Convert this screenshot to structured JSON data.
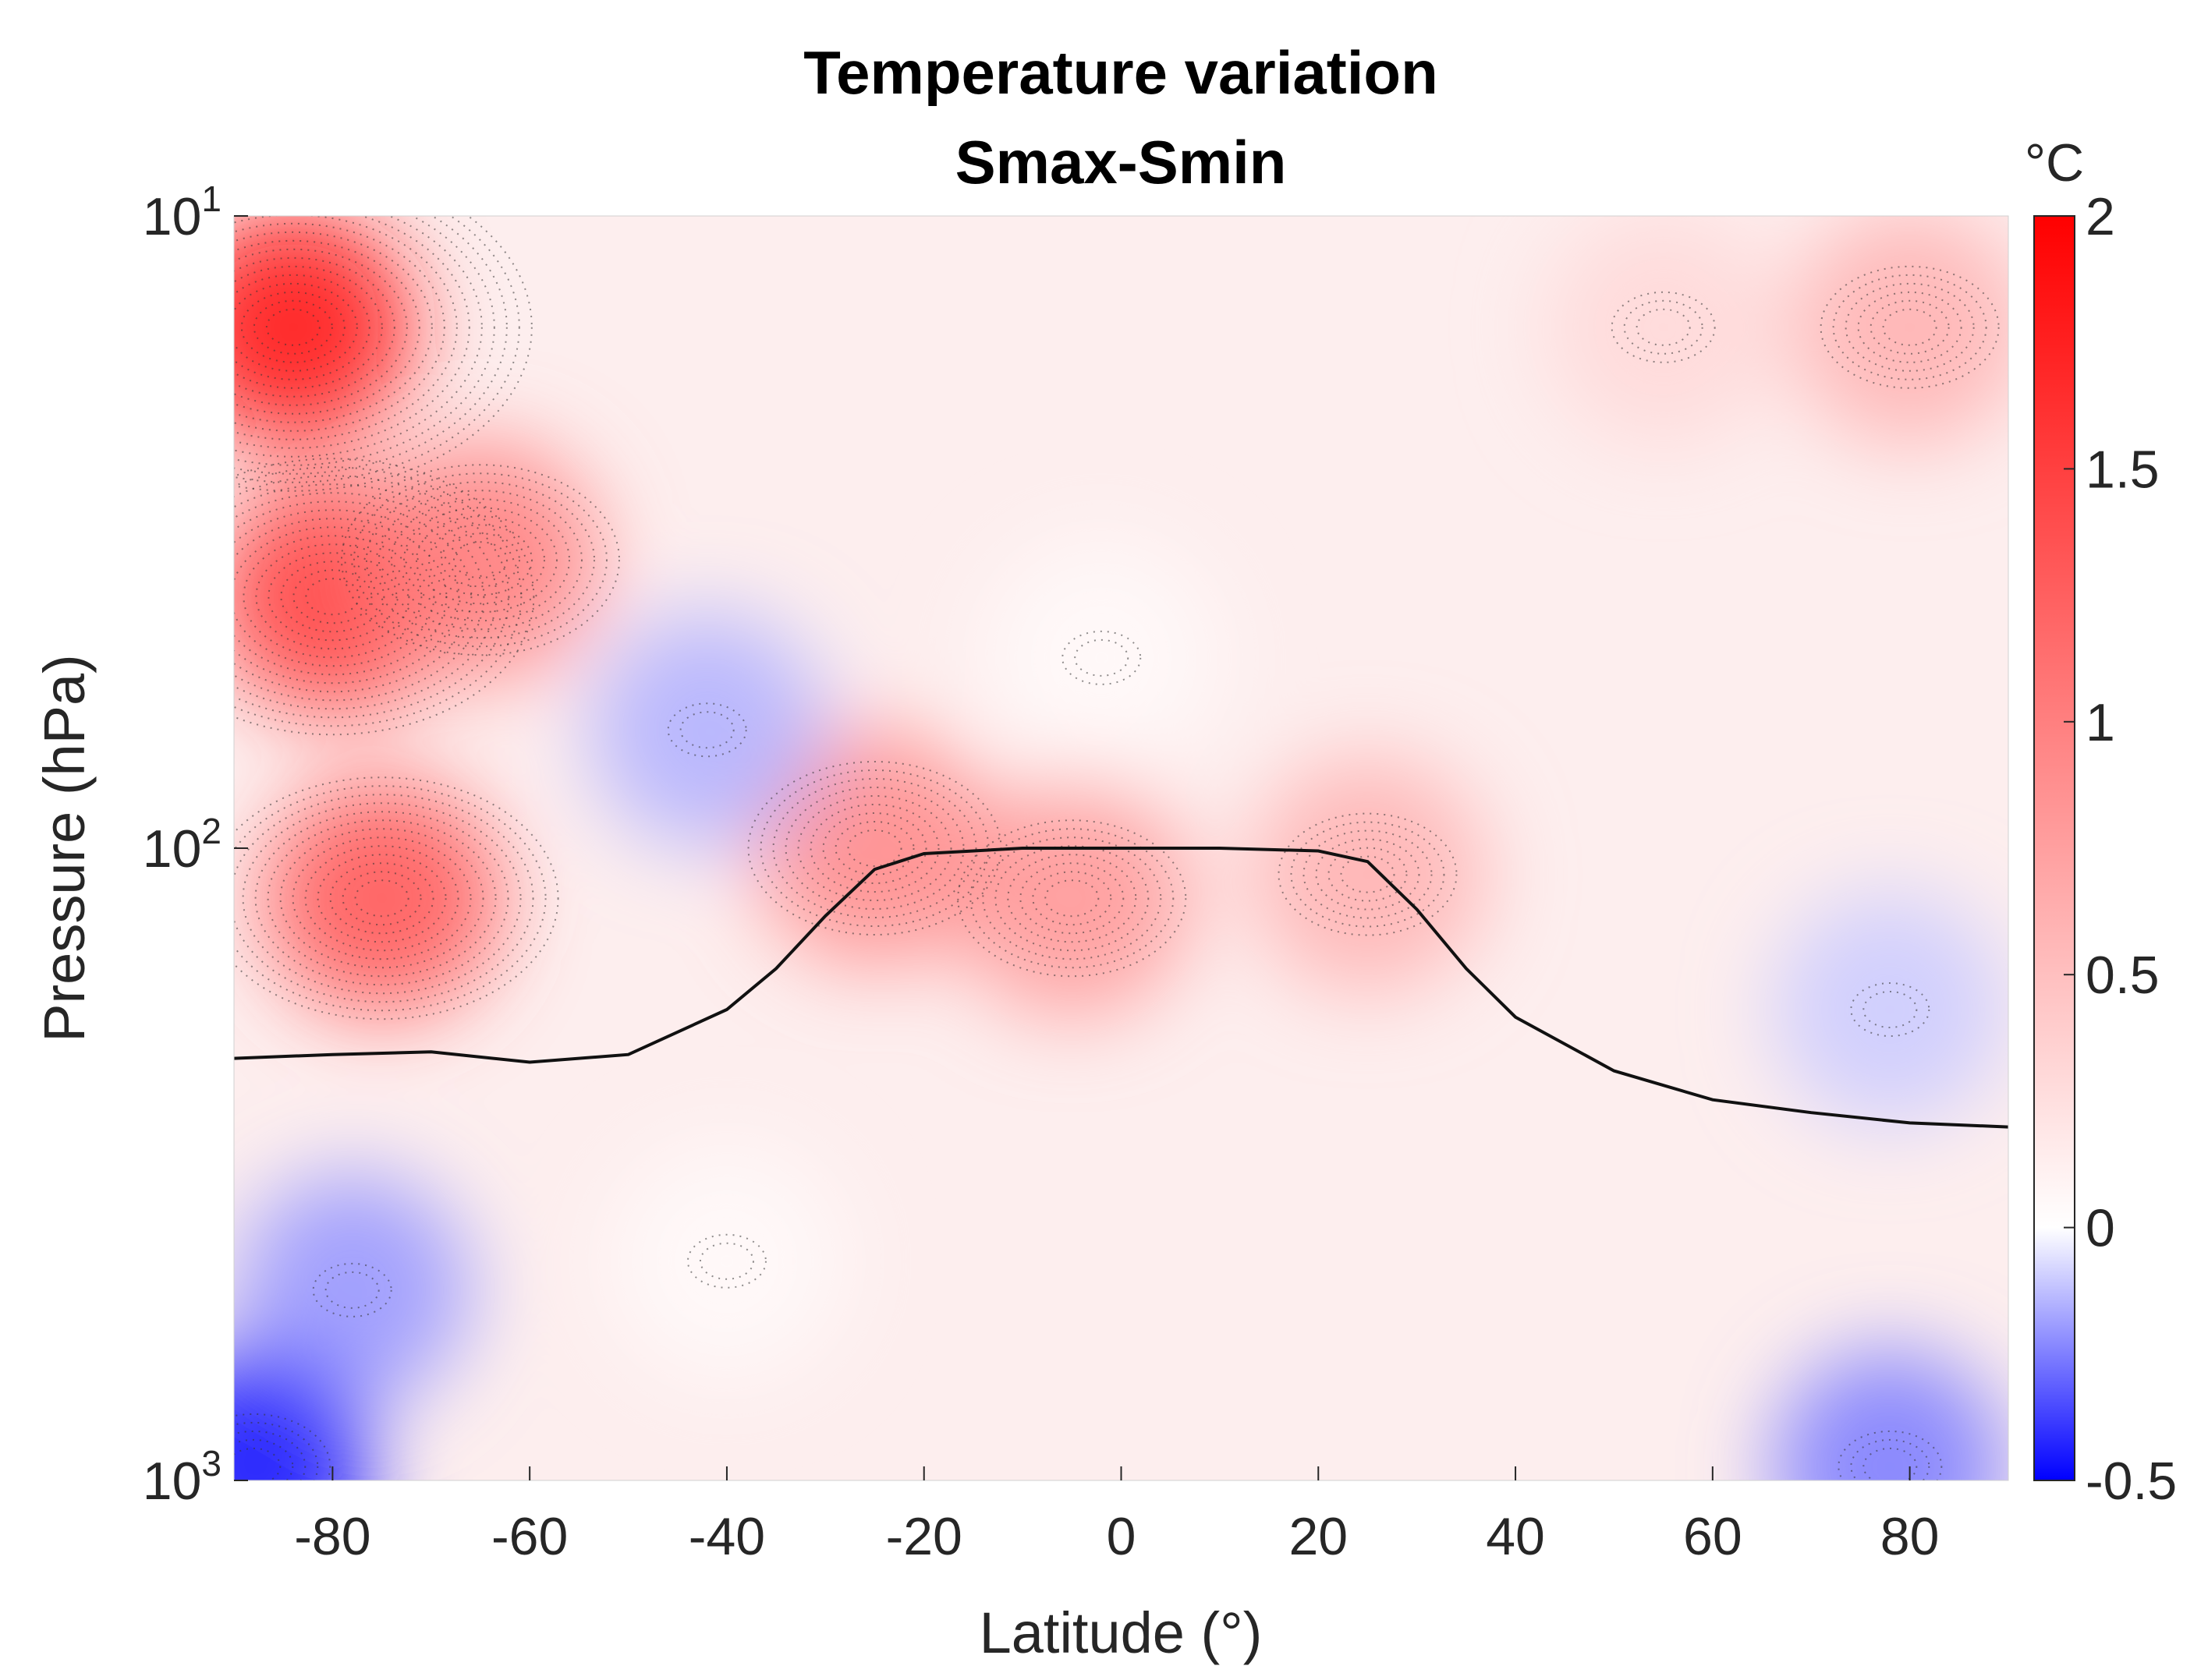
{
  "chart_data": {
    "type": "heatmap",
    "title": "Temperature variation",
    "subtitle": "Smax-Smin",
    "xlabel": "Latitude (°)",
    "ylabel": "Pressure (hPa)",
    "xlim": [
      -90,
      90
    ],
    "ylim": [
      10,
      1000
    ],
    "yscale": "log",
    "yreverse": true,
    "x_ticks": [
      -80,
      -60,
      -40,
      -20,
      0,
      20,
      40,
      60,
      80
    ],
    "x_tick_labels": [
      "-80",
      "-60",
      "-40",
      "-20",
      "0",
      "20",
      "40",
      "60",
      "80"
    ],
    "y_ticks": [
      {
        "value": 10,
        "base": "10",
        "exponent": "1"
      },
      {
        "value": 100,
        "base": "10",
        "exponent": "2"
      },
      {
        "value": 1000,
        "base": "10",
        "exponent": "3"
      }
    ],
    "colorbar": {
      "unit": "°C",
      "range": [
        -0.5,
        2
      ],
      "ticks": [
        2,
        1.5,
        1,
        0.5,
        0,
        -0.5
      ],
      "tick_labels": [
        "2",
        "1.5",
        "1",
        "0.5",
        "0",
        "-0.5"
      ],
      "color_low": "#0000ff",
      "color_mid": "#ffffff",
      "color_high": "#ff0000"
    },
    "field_features": [
      {
        "lat": -84,
        "pressure": 15,
        "value": 1.8
      },
      {
        "lat": -80,
        "pressure": 40,
        "value": 1.5
      },
      {
        "lat": -75,
        "pressure": 120,
        "value": 1.3
      },
      {
        "lat": -65,
        "pressure": 35,
        "value": 1.0
      },
      {
        "lat": -25,
        "pressure": 100,
        "value": 0.9
      },
      {
        "lat": -5,
        "pressure": 120,
        "value": 0.8
      },
      {
        "lat": 25,
        "pressure": 110,
        "value": 0.6
      },
      {
        "lat": -42,
        "pressure": 65,
        "value": -0.15
      },
      {
        "lat": -2,
        "pressure": 50,
        "value": 0.05
      },
      {
        "lat": 80,
        "pressure": 15,
        "value": 0.6
      },
      {
        "lat": 55,
        "pressure": 15,
        "value": 0.3
      },
      {
        "lat": -78,
        "pressure": 500,
        "value": -0.2
      },
      {
        "lat": -88,
        "pressure": 950,
        "value": -0.45
      },
      {
        "lat": 78,
        "pressure": 950,
        "value": -0.25
      },
      {
        "lat": 78,
        "pressure": 180,
        "value": -0.1
      },
      {
        "lat": -40,
        "pressure": 450,
        "value": 0.05
      }
    ],
    "tropopause_line": {
      "lat": [
        -90,
        -80,
        -70,
        -60,
        -50,
        -40,
        -35,
        -30,
        -25,
        -20,
        -10,
        0,
        10,
        20,
        25,
        30,
        35,
        40,
        50,
        60,
        70,
        80,
        90
      ],
      "pressure": [
        215,
        212,
        210,
        218,
        212,
        180,
        155,
        128,
        108,
        102,
        100,
        100,
        100,
        101,
        105,
        125,
        155,
        185,
        225,
        250,
        262,
        272,
        276
      ]
    }
  }
}
